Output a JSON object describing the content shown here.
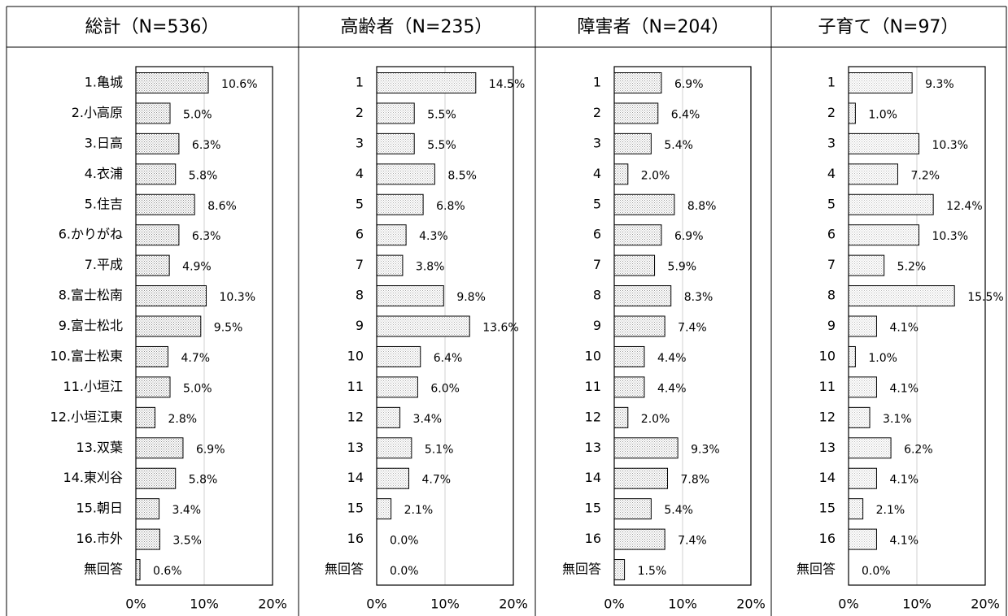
{
  "chart_data": [
    {
      "type": "barh",
      "title": "総計（N=536）",
      "categories": [
        "1.亀城",
        "2.小高原",
        "3.日高",
        "4.衣浦",
        "5.住吉",
        "6.かりがね",
        "7.平成",
        "8.富士松南",
        "9.富士松北",
        "10.富士松東",
        "11.小垣江",
        "12.小垣江東",
        "13.双葉",
        "14.東刈谷",
        "15.朝日",
        "16.市外",
        "無回答"
      ],
      "values": [
        10.6,
        5.0,
        6.3,
        5.8,
        8.6,
        6.3,
        4.9,
        10.3,
        9.5,
        4.7,
        5.0,
        2.8,
        6.9,
        5.8,
        3.4,
        3.5,
        0.6
      ],
      "value_labels": [
        "10.6%",
        "5.0%",
        "6.3%",
        "5.8%",
        "8.6%",
        "6.3%",
        "4.9%",
        "10.3%",
        "9.5%",
        "4.7%",
        "5.0%",
        "2.8%",
        "6.9%",
        "5.8%",
        "3.4%",
        "3.5%",
        "0.6%"
      ],
      "color": "#888888",
      "xlim": [
        0,
        20
      ],
      "xticks": [
        {
          "value": 0,
          "label": "0%"
        },
        {
          "value": 10,
          "label": "10%"
        },
        {
          "value": 20,
          "label": "20%"
        }
      ],
      "grid": true
    },
    {
      "type": "barh",
      "title": "高齢者（N=235）",
      "categories": [
        "1",
        "2",
        "3",
        "4",
        "5",
        "6",
        "7",
        "8",
        "9",
        "10",
        "11",
        "12",
        "13",
        "14",
        "15",
        "16",
        "無回答"
      ],
      "values": [
        14.5,
        5.5,
        5.5,
        8.5,
        6.8,
        4.3,
        3.8,
        9.8,
        13.6,
        6.4,
        6.0,
        3.4,
        5.1,
        4.7,
        2.1,
        0.0,
        0.0
      ],
      "value_labels": [
        "14.5%",
        "5.5%",
        "5.5%",
        "8.5%",
        "6.8%",
        "4.3%",
        "3.8%",
        "9.8%",
        "13.6%",
        "6.4%",
        "6.0%",
        "3.4%",
        "5.1%",
        "4.7%",
        "2.1%",
        "0.0%",
        "0.0%"
      ],
      "color": "#aaaaaa",
      "xlim": [
        0,
        20
      ],
      "xticks": [
        {
          "value": 0,
          "label": "0%"
        },
        {
          "value": 10,
          "label": "10%"
        },
        {
          "value": 20,
          "label": "20%"
        }
      ],
      "grid": true
    },
    {
      "type": "barh",
      "title": "障害者（N=204）",
      "categories": [
        "1",
        "2",
        "3",
        "4",
        "5",
        "6",
        "7",
        "8",
        "9",
        "10",
        "11",
        "12",
        "13",
        "14",
        "15",
        "16",
        "無回答"
      ],
      "values": [
        6.9,
        6.4,
        5.4,
        2.0,
        8.8,
        6.9,
        5.9,
        8.3,
        7.4,
        4.4,
        4.4,
        2.0,
        9.3,
        7.8,
        5.4,
        7.4,
        1.5
      ],
      "value_labels": [
        "6.9%",
        "6.4%",
        "5.4%",
        "2.0%",
        "8.8%",
        "6.9%",
        "5.9%",
        "8.3%",
        "7.4%",
        "4.4%",
        "4.4%",
        "2.0%",
        "9.3%",
        "7.8%",
        "5.4%",
        "7.4%",
        "1.5%"
      ],
      "color": "#999999",
      "xlim": [
        0,
        20
      ],
      "xticks": [
        {
          "value": 0,
          "label": "0%"
        },
        {
          "value": 10,
          "label": "10%"
        },
        {
          "value": 20,
          "label": "20%"
        }
      ],
      "grid": true
    },
    {
      "type": "barh",
      "title": "子育て（N=97）",
      "categories": [
        "1",
        "2",
        "3",
        "4",
        "5",
        "6",
        "7",
        "8",
        "9",
        "10",
        "11",
        "12",
        "13",
        "14",
        "15",
        "16",
        "無回答"
      ],
      "values": [
        9.3,
        1.0,
        10.3,
        7.2,
        12.4,
        10.3,
        5.2,
        15.5,
        4.1,
        1.0,
        4.1,
        3.1,
        6.2,
        4.1,
        2.1,
        4.1,
        0.0
      ],
      "value_labels": [
        "9.3%",
        "1.0%",
        "10.3%",
        "7.2%",
        "12.4%",
        "10.3%",
        "5.2%",
        "15.5%",
        "4.1%",
        "1.0%",
        "4.1%",
        "3.1%",
        "6.2%",
        "4.1%",
        "2.1%",
        "4.1%",
        "0.0%"
      ],
      "color": "#bbbbbb",
      "xlim": [
        0,
        20
      ],
      "xticks": [
        {
          "value": 0,
          "label": "0%"
        },
        {
          "value": 10,
          "label": "10%"
        },
        {
          "value": 20,
          "label": "20%"
        }
      ],
      "grid": true
    }
  ]
}
